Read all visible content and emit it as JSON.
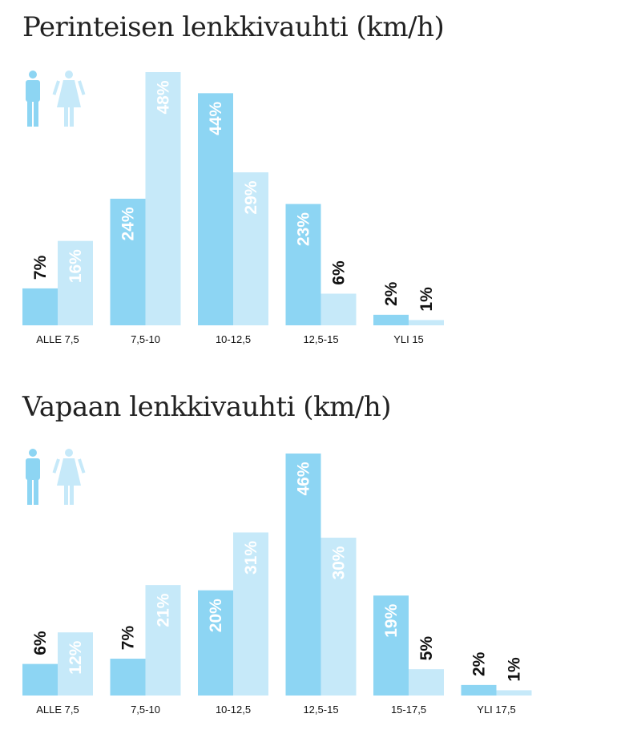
{
  "colors": {
    "male": "#8dd5f3",
    "female": "#c6e9f9",
    "label_inside": "#ffffff",
    "label_outside": "#111111",
    "title": "#222222"
  },
  "icons": {
    "male": "male-person-icon",
    "female": "female-person-icon"
  },
  "chart_data": [
    {
      "type": "bar",
      "title": "Perinteisen lenkkivauhti (km/h)",
      "categories": [
        "ALLE 7,5",
        "7,5-10",
        "10-12,5",
        "12,5-15",
        "YLI 15"
      ],
      "series": [
        {
          "key": "male",
          "values": [
            7,
            24,
            44,
            23,
            2
          ]
        },
        {
          "key": "female",
          "values": [
            16,
            48,
            29,
            6,
            1
          ]
        }
      ],
      "value_suffix": "%",
      "ylim": [
        0,
        48
      ],
      "legend": "icons top-left",
      "grid": false
    },
    {
      "type": "bar",
      "title": "Vapaan lenkkivauhti (km/h)",
      "categories": [
        "ALLE 7,5",
        "7,5-10",
        "10-12,5",
        "12,5-15",
        "15-17,5",
        "YLI 17,5"
      ],
      "series": [
        {
          "key": "male",
          "values": [
            6,
            7,
            20,
            46,
            19,
            2
          ]
        },
        {
          "key": "female",
          "values": [
            12,
            21,
            31,
            30,
            5,
            1
          ]
        }
      ],
      "value_suffix": "%",
      "ylim": [
        0,
        46
      ],
      "legend": "icons top-left",
      "grid": false
    }
  ]
}
